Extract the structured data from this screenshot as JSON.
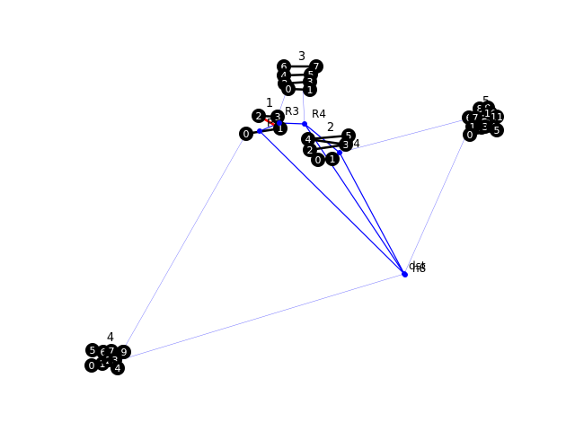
{
  "colors": {
    "background": "#ffffff",
    "node_fill": "#000000",
    "node_text": "#ffffff",
    "intra_edge": "#000000",
    "intra_edge_alt": "#ff0000",
    "route_edge": "#0000ff",
    "faint_edge": "#0000ff"
  },
  "clusters": [
    {
      "label": "1",
      "nodes": [
        "0",
        "2",
        "3",
        "1"
      ]
    },
    {
      "label": "2",
      "nodes": [
        "4",
        "5",
        "2",
        "3",
        "0",
        "1"
      ]
    },
    {
      "label": "3",
      "nodes": [
        "6",
        "7",
        "4",
        "5",
        "2",
        "3",
        "0",
        "1"
      ]
    },
    {
      "label": "4",
      "nodes": [
        "5",
        "6",
        "7",
        "8",
        "9",
        "0",
        "1",
        "2",
        "3",
        "4"
      ]
    },
    {
      "label": "5",
      "nodes": [
        "8",
        "9",
        "6",
        "7",
        "10",
        "11",
        "1",
        "2",
        "3",
        "4",
        "0",
        "5"
      ]
    }
  ],
  "hubs": [
    {
      "id": "h1",
      "label": "P3"
    },
    {
      "id": "h2",
      "label": "R3"
    },
    {
      "id": "h3",
      "label": "R4"
    },
    {
      "id": "h4",
      "label": "P4"
    },
    {
      "id": "h5",
      "label": "dst"
    },
    {
      "id": "h6",
      "label": "h8"
    }
  ]
}
